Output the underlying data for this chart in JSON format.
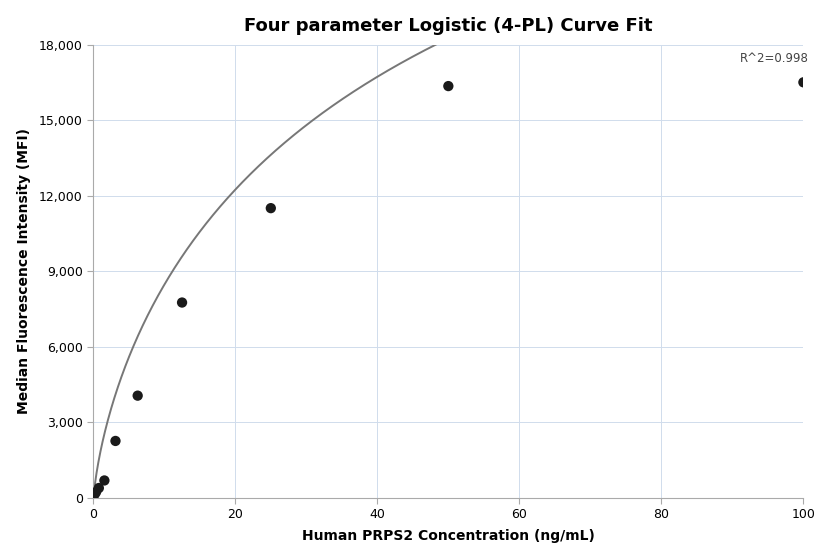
{
  "title": "Four parameter Logistic (4-PL) Curve Fit",
  "xlabel": "Human PRPS2 Concentration (ng/mL)",
  "ylabel": "Median Fluorescence Intensity (MFI)",
  "scatter_x": [
    0.098,
    0.195,
    0.39,
    0.781,
    1.563,
    3.125,
    6.25,
    12.5,
    25.0,
    50.0,
    100.0
  ],
  "scatter_y": [
    100,
    150,
    250,
    450,
    750,
    2300,
    4000,
    7700,
    11400,
    16300
  ],
  "scatter_x_actual": [
    0.195,
    0.39,
    0.781,
    1.563,
    3.125,
    6.25,
    12.5,
    25.0,
    50.0,
    100.0
  ],
  "scatter_color": "#1a1a1a",
  "scatter_size": 55,
  "curve_color": "#777777",
  "curve_linewidth": 1.4,
  "r_squared": "R^2=0.998",
  "xlim": [
    0,
    100
  ],
  "ylim": [
    0,
    18000
  ],
  "yticks": [
    0,
    3000,
    6000,
    9000,
    12000,
    15000,
    18000
  ],
  "xticks": [
    0,
    20,
    40,
    60,
    80,
    100
  ],
  "grid_color": "#d0dcec",
  "grid_linewidth": 0.7,
  "background_color": "#ffffff",
  "title_fontsize": 13,
  "label_fontsize": 10,
  "tick_fontsize": 9,
  "4pl_A": -200,
  "4pl_B": 0.72,
  "4pl_C": 55.0,
  "4pl_D": 38000
}
